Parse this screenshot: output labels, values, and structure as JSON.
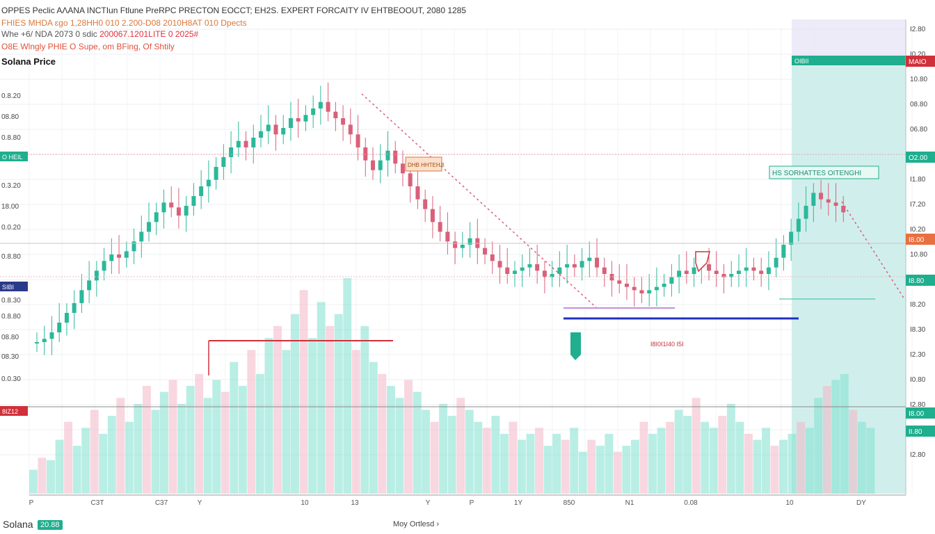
{
  "header": {
    "title": "OPPES Peclic AɅANA INCTIun Ftlune PreRPC PRECTON EOCCT; EH2S. EXPERT FORCAITY IV EHTBEOOUT, 2080 1285",
    "sub1": "FHIES MHDA ɛgo 1,28HH0 010 2.200-D08 2010H8AT 010 Dpects",
    "sub2": "Whe +6/ NDA 2073 0 sdic",
    "sub2_red": "200067.1201LITE 0 2025#",
    "sub3": "O8E Wlngly PHIE O Supe, om BFing, Of Shtily",
    "price_label": "Solana Price"
  },
  "footer": {
    "left": "Solana",
    "badge": "20.88",
    "mid": "Moy Ortlesd ›"
  },
  "chart_data": {
    "type": "candlestick",
    "title": "OPPES Peclic AɅANA INCTIun Ftlune PreRPC PRECTON EOCCT; EH2S. EXPERT FORCAITY IV EHTBEOOUT, 2080 1285",
    "ylabel": "Solana Price",
    "x_tick_labels": [
      "P",
      "C3T",
      "C37",
      "Y",
      "10",
      "13",
      "Y",
      "P",
      "1Y",
      "850",
      "N1",
      "0.08",
      "10",
      "DY"
    ],
    "y_tick_labels_right": [
      "I2.80",
      "I0.20",
      "10.80",
      "08.80",
      "06.80",
      "08.80",
      "I1.80",
      "I7.20",
      "I0.20",
      "10.80",
      "I9.80",
      "I8.20",
      "I8.30",
      "I2.30",
      "I0.80",
      "I2.80",
      "I8.80",
      "I2.80"
    ],
    "y_tick_labels_left": [
      "0.8.20",
      "08.80",
      "0.8.80",
      "0.3.20",
      "18.00",
      "0.0.20",
      "0.8.80",
      "0.8.30",
      "0.8.80",
      "08.80",
      "08.30",
      "0.0.30"
    ],
    "left_badges": [
      "O HEIL",
      "SIBI",
      "8IZ12"
    ],
    "right_badges": [
      "MAIO",
      "O2.00",
      "I8.00",
      "I8.80",
      "I8.00",
      "II.80"
    ],
    "annotations": [
      "DHB HHTEHJI",
      "HS SORHATTES OITENGHI",
      "I8I0I1I40 I5I",
      "OIBII"
    ],
    "close_series": [
      12,
      14,
      18,
      24,
      30,
      36,
      44,
      50,
      56,
      62,
      66,
      64,
      68,
      74,
      80,
      86,
      92,
      98,
      95,
      90,
      96,
      102,
      108,
      112,
      120,
      126,
      132,
      136,
      132,
      138,
      142,
      146,
      140,
      144,
      150,
      148,
      152,
      156,
      160,
      154,
      150,
      146,
      140,
      132,
      124,
      118,
      124,
      130,
      122,
      116,
      108,
      100,
      94,
      86,
      80,
      74,
      70,
      72,
      76,
      70,
      66,
      62,
      58,
      54,
      56,
      58,
      60,
      56,
      52,
      54,
      58,
      60,
      58,
      62,
      64,
      58,
      54,
      50,
      48,
      46,
      44,
      42,
      44,
      46,
      48,
      52,
      56,
      54,
      58,
      60,
      56,
      54,
      52,
      54,
      56,
      58,
      56,
      54,
      58,
      64,
      72,
      80,
      88,
      96,
      104,
      100,
      98,
      96,
      92
    ],
    "volume_series": [
      20,
      30,
      28,
      45,
      60,
      40,
      55,
      70,
      50,
      65,
      80,
      60,
      75,
      90,
      70,
      85,
      95,
      75,
      90,
      100,
      80,
      95,
      85,
      110,
      90,
      120,
      100,
      130,
      140,
      120,
      150,
      170,
      130,
      160,
      140,
      150,
      180,
      120,
      140,
      110,
      100,
      90,
      80,
      95,
      85,
      70,
      60,
      75,
      65,
      80,
      70,
      60,
      55,
      65,
      50,
      60,
      45,
      50,
      55,
      40,
      50,
      45,
      55,
      35,
      45,
      40,
      50,
      35,
      40,
      45,
      60,
      50,
      55,
      60,
      70,
      65,
      80,
      60,
      55,
      65,
      75,
      60,
      50,
      45,
      55,
      40,
      45,
      50,
      60,
      55,
      80,
      90,
      95,
      100,
      70,
      60,
      55
    ],
    "ylim": [
      0,
      180
    ],
    "colors": {
      "up": "#2bb89a",
      "down": "#d9607a",
      "forecast_band": "#c8f0e8",
      "upper_band": "#e6e2f5",
      "volume_up": "#7fe0cf",
      "volume_down": "#f2b7c6"
    }
  }
}
